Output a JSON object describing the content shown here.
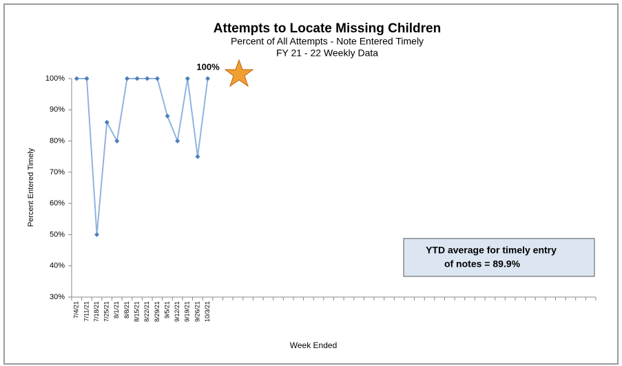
{
  "chart_data": {
    "type": "line",
    "title": "Attempts to Locate Missing Children",
    "subtitle": "Percent of All Attempts -  Note Entered Timely",
    "subtitle2": "FY 21 - 22 Weekly Data",
    "x_label": "Week Ended",
    "y_label": "Percent Entered Timely",
    "categories": [
      "7/4/21",
      "7/11/21",
      "7/18/21",
      "7/25/21",
      "8/1/21",
      "8/8/21",
      "8/15/21",
      "8/22/21",
      "8/29/21",
      "9/5/21",
      "9/12/21",
      "9/19/21",
      "9/26/21",
      "10/3/21",
      null,
      null,
      null,
      null,
      null,
      null,
      null,
      null,
      null,
      null,
      null,
      null,
      null,
      null,
      null,
      null,
      null,
      null,
      null,
      null,
      null,
      null,
      null,
      null,
      null,
      null,
      null,
      null,
      null,
      null,
      null,
      null,
      null,
      null,
      null,
      null,
      null,
      null
    ],
    "series": [
      {
        "name": "Percent Entered Timely",
        "color": "#8fb3e0",
        "marker_color": "#4a7ebb",
        "values": [
          100,
          100,
          50,
          86,
          80,
          100,
          100,
          100,
          100,
          88,
          80,
          100,
          75,
          100,
          null,
          null,
          null,
          null,
          null,
          null,
          null,
          null,
          null,
          null,
          null,
          null,
          null,
          null,
          null,
          null,
          null,
          null,
          null,
          null,
          null,
          null,
          null,
          null,
          null,
          null,
          null,
          null,
          null,
          null,
          null,
          null,
          null,
          null,
          null,
          null,
          null,
          null
        ]
      }
    ],
    "ylim": [
      30,
      100
    ],
    "yticks": [
      {
        "value": 30,
        "label": "30%"
      },
      {
        "value": 40,
        "label": "40%"
      },
      {
        "value": 50,
        "label": "50%"
      },
      {
        "value": 60,
        "label": "60%"
      },
      {
        "value": 70,
        "label": "70%"
      },
      {
        "value": 80,
        "label": "80%"
      },
      {
        "value": 90,
        "label": "90%"
      },
      {
        "value": 100,
        "label": "100%"
      }
    ],
    "grid": false,
    "annotation": "100%",
    "note_lines": [
      "YTD average for timely entry",
      "of notes =  89.9%"
    ]
  }
}
